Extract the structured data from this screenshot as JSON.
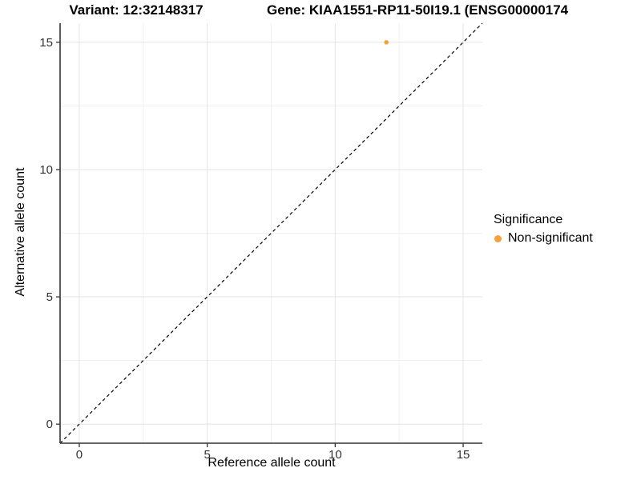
{
  "header": {
    "title_left": "Variant: 12:32148317",
    "title_right": "Gene: KIAA1551-RP11-50I19.1 (ENSG00000174"
  },
  "chart_data": {
    "type": "scatter",
    "xlabel": "Reference allele count",
    "ylabel": "Alternative allele count",
    "xlim": [
      -0.75,
      15.75
    ],
    "ylim": [
      -0.75,
      15.75
    ],
    "x_ticks": [
      0,
      5,
      10,
      15
    ],
    "y_ticks": [
      0,
      5,
      10,
      15
    ],
    "x_minor_ticks": [
      2.5,
      7.5,
      12.5
    ],
    "y_minor_ticks": [
      2.5,
      7.5,
      12.5
    ],
    "grid": "major+minor",
    "identity_line": {
      "type": "y=x",
      "style": "dashed",
      "color": "#000000"
    },
    "series": [
      {
        "name": "Non-significant",
        "color": "#F8A13A",
        "points": [
          {
            "x": 12,
            "y": 15
          }
        ]
      }
    ],
    "legend": {
      "title": "Significance",
      "position": "right",
      "entries": [
        {
          "label": "Non-significant",
          "color": "#F8A13A"
        }
      ]
    },
    "colors": {
      "major_grid": "#E4E4E4",
      "minor_grid": "#F1F1F1",
      "axis_line": "#333333",
      "tick_label": "#333333",
      "panel_background": "#FFFFFF"
    }
  }
}
